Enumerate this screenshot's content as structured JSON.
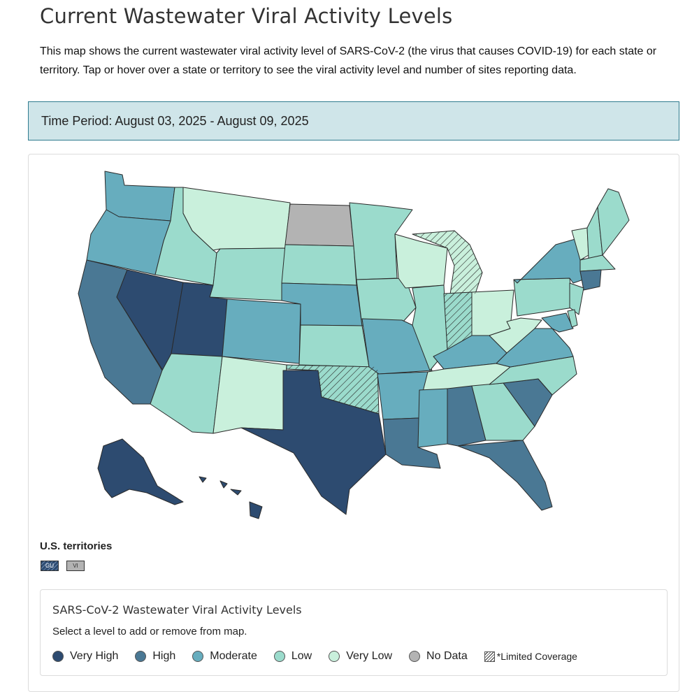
{
  "page": {
    "title": "Current Wastewater Viral Activity Levels",
    "intro": "This map shows the current wastewater viral activity level of SARS-CoV-2 (the virus that causes COVID-19) for each state or territory. Tap or hover over a state or territory to see the viral activity level and number of sites reporting data.",
    "time_period": "Time Period: August 03, 2025 - August 09, 2025"
  },
  "colors": {
    "very_high": "#2d4b70",
    "high": "#4a7894",
    "moderate": "#67adbe",
    "low": "#9bdbcc",
    "very_low": "#c9f0dc",
    "no_data": "#b3b3b3",
    "border": "#2a2a2a"
  },
  "map": {
    "states": [
      {
        "name": "Washington",
        "level": "moderate"
      },
      {
        "name": "Oregon",
        "level": "moderate"
      },
      {
        "name": "California",
        "level": "high"
      },
      {
        "name": "Nevada",
        "level": "very_high"
      },
      {
        "name": "Idaho",
        "level": "low"
      },
      {
        "name": "Montana",
        "level": "very_low"
      },
      {
        "name": "Wyoming",
        "level": "low"
      },
      {
        "name": "Utah",
        "level": "very_high"
      },
      {
        "name": "Arizona",
        "level": "low"
      },
      {
        "name": "Colorado",
        "level": "moderate"
      },
      {
        "name": "New Mexico",
        "level": "very_low"
      },
      {
        "name": "North Dakota",
        "level": "no_data"
      },
      {
        "name": "South Dakota",
        "level": "low"
      },
      {
        "name": "Nebraska",
        "level": "moderate"
      },
      {
        "name": "Kansas",
        "level": "low"
      },
      {
        "name": "Oklahoma",
        "level": "low",
        "limited_coverage": true
      },
      {
        "name": "Texas",
        "level": "very_high"
      },
      {
        "name": "Minnesota",
        "level": "low"
      },
      {
        "name": "Iowa",
        "level": "low"
      },
      {
        "name": "Missouri",
        "level": "moderate"
      },
      {
        "name": "Arkansas",
        "level": "moderate"
      },
      {
        "name": "Louisiana",
        "level": "high"
      },
      {
        "name": "Wisconsin",
        "level": "very_low"
      },
      {
        "name": "Illinois",
        "level": "low"
      },
      {
        "name": "Michigan",
        "level": "very_low",
        "limited_coverage": true
      },
      {
        "name": "Indiana",
        "level": "low",
        "limited_coverage": true
      },
      {
        "name": "Ohio",
        "level": "very_low"
      },
      {
        "name": "Kentucky",
        "level": "moderate"
      },
      {
        "name": "Tennessee",
        "level": "very_low"
      },
      {
        "name": "Mississippi",
        "level": "moderate"
      },
      {
        "name": "Alabama",
        "level": "high"
      },
      {
        "name": "Georgia",
        "level": "low"
      },
      {
        "name": "Florida",
        "level": "high"
      },
      {
        "name": "South Carolina",
        "level": "high"
      },
      {
        "name": "North Carolina",
        "level": "low"
      },
      {
        "name": "Virginia",
        "level": "moderate"
      },
      {
        "name": "West Virginia",
        "level": "very_low"
      },
      {
        "name": "Pennsylvania",
        "level": "low"
      },
      {
        "name": "New York",
        "level": "moderate"
      },
      {
        "name": "Vermont",
        "level": "very_low"
      },
      {
        "name": "New Hampshire",
        "level": "low"
      },
      {
        "name": "Maine",
        "level": "low"
      },
      {
        "name": "Massachusetts",
        "level": "low"
      },
      {
        "name": "Connecticut",
        "level": "high"
      },
      {
        "name": "New Jersey",
        "level": "low"
      },
      {
        "name": "Maryland",
        "level": "moderate"
      },
      {
        "name": "Delaware",
        "level": "low"
      },
      {
        "name": "Alaska",
        "level": "very_high"
      },
      {
        "name": "Hawaii",
        "level": "very_high"
      }
    ]
  },
  "territories": {
    "label": "U.S. territories",
    "items": [
      {
        "code": "GU",
        "level": "very_high",
        "limited_coverage": true
      },
      {
        "code": "VI",
        "level": "no_data"
      }
    ]
  },
  "legend": {
    "title": "SARS-CoV-2 Wastewater Viral Activity Levels",
    "instruction": "Select a level to add or remove from map.",
    "items": [
      {
        "label": "Very High",
        "color": "#2d4b70"
      },
      {
        "label": "High",
        "color": "#4a7894"
      },
      {
        "label": "Moderate",
        "color": "#67adbe"
      },
      {
        "label": "Low",
        "color": "#9bdbcc"
      },
      {
        "label": "Very Low",
        "color": "#c9f0dc"
      },
      {
        "label": "No Data",
        "color": "#b3b3b3"
      }
    ],
    "limited_coverage_label": "*Limited Coverage"
  }
}
